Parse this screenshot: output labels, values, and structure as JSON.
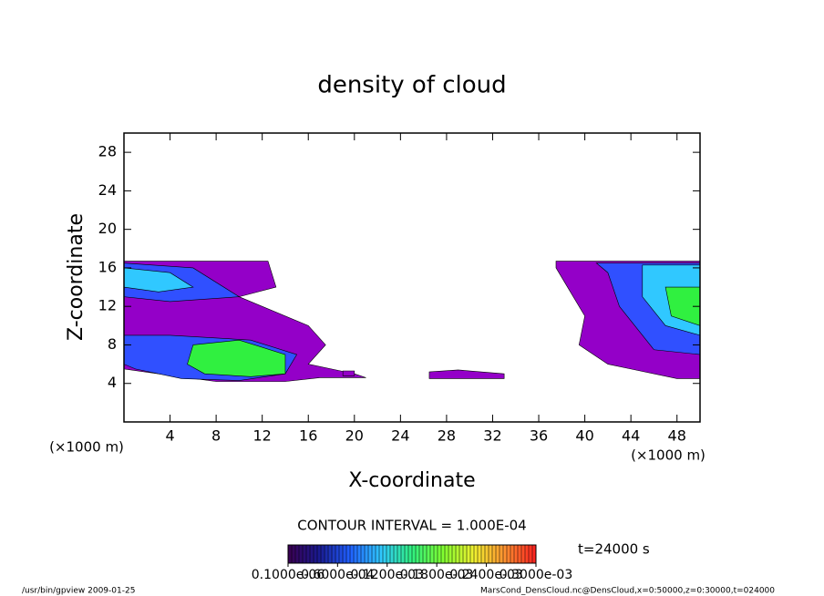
{
  "chart_data": {
    "type": "contour",
    "title": "density of cloud",
    "x_label": "X-coordinate",
    "y_label": "Z-coordinate",
    "x_unit": "(×1000 m)",
    "xlim": [
      0,
      50
    ],
    "xticks": [
      4,
      8,
      12,
      16,
      20,
      24,
      28,
      32,
      36,
      40,
      44,
      48
    ],
    "ylim": [
      0,
      30
    ],
    "yticks": [
      4,
      8,
      12,
      16,
      20,
      24,
      28
    ],
    "regions": [
      {
        "level": 1e-07,
        "color": "#9400c8",
        "x": [
          0,
          12.5,
          13.2,
          10,
          16,
          17.5,
          16,
          20,
          21,
          17,
          14,
          8,
          3,
          0
        ],
        "z": [
          16.7,
          16.7,
          14,
          13,
          10,
          8,
          6,
          5,
          4.6,
          4.6,
          4.2,
          4.2,
          5,
          5.5
        ]
      },
      {
        "level": 1e-07,
        "color": "#9400c8",
        "x": [
          37.5,
          50,
          50,
          48,
          44,
          42,
          39.5,
          40,
          38.5,
          37.5
        ],
        "z": [
          16.7,
          16.7,
          4.5,
          4.5,
          5.5,
          6,
          8,
          11,
          14,
          16
        ]
      },
      {
        "level": 1e-07,
        "color": "#9400c8",
        "x": [
          26.5,
          29,
          33,
          33,
          26.5
        ],
        "z": [
          5.2,
          5.4,
          5,
          4.5,
          4.5
        ]
      },
      {
        "level": 1e-07,
        "color": "#9400c8",
        "x": [
          19,
          20,
          20,
          19
        ],
        "z": [
          5.3,
          5.3,
          4.8,
          4.8
        ]
      },
      {
        "level": 4e-05,
        "color": "#3050ff",
        "x": [
          0,
          6,
          10,
          4,
          0
        ],
        "z": [
          16.5,
          16,
          13,
          12.5,
          13
        ]
      },
      {
        "level": 4e-05,
        "color": "#3050ff",
        "x": [
          0,
          4,
          11,
          15,
          14,
          10,
          5,
          1,
          0
        ],
        "z": [
          9,
          9,
          8.5,
          7,
          5,
          4.3,
          4.5,
          5.5,
          6
        ]
      },
      {
        "level": 4e-05,
        "color": "#3050ff",
        "x": [
          41,
          50,
          50,
          46,
          43,
          42
        ],
        "z": [
          16.5,
          16.5,
          7,
          7.5,
          12,
          15.5
        ]
      },
      {
        "level": 8e-05,
        "color": "#30c8ff",
        "x": [
          0,
          4,
          6,
          3,
          0
        ],
        "z": [
          16,
          15.5,
          14,
          13.5,
          14
        ]
      },
      {
        "level": 8e-05,
        "color": "#30c8ff",
        "x": [
          45,
          50,
          50,
          47,
          45
        ],
        "z": [
          16.3,
          16.3,
          9,
          10,
          13
        ]
      },
      {
        "level": 0.00012,
        "color": "#30f040",
        "x": [
          6,
          10,
          14,
          14,
          11,
          7,
          5.5
        ],
        "z": [
          8,
          8.5,
          7,
          5,
          4.7,
          5,
          6
        ]
      },
      {
        "level": 0.00012,
        "color": "#30f040",
        "x": [
          47,
          50,
          50,
          47.5
        ],
        "z": [
          14,
          14,
          10,
          11
        ]
      }
    ],
    "contour_interval": "CONTOUR INTERVAL = 1.000E-04",
    "time_label": "t=24000 s",
    "colorbar": {
      "lim": [
        1e-07,
        0.0003
      ],
      "colors": [
        "#3a0050",
        "#1a1a90",
        "#2060ff",
        "#30c8ff",
        "#30f080",
        "#80ff30",
        "#f0f030",
        "#ff9030",
        "#ff2020"
      ],
      "ticks": [
        {
          "value": 1e-07,
          "label": "0.1000e-06"
        },
        {
          "value": 6e-05,
          "label": "0.6000e-04"
        },
        {
          "value": 0.00012,
          "label": "0.1200e-03"
        },
        {
          "value": 0.00018,
          "label": "0.1800e-03"
        },
        {
          "value": 0.00024,
          "label": "0.2400e-03"
        },
        {
          "value": 0.0003,
          "label": "0.3000e-03"
        }
      ]
    },
    "footer_left": "/usr/bin/gpview  2009-01-25",
    "footer_right": "MarsCond_DensCloud.nc@DensCloud,x=0:50000,z=0:30000,t=024000"
  }
}
